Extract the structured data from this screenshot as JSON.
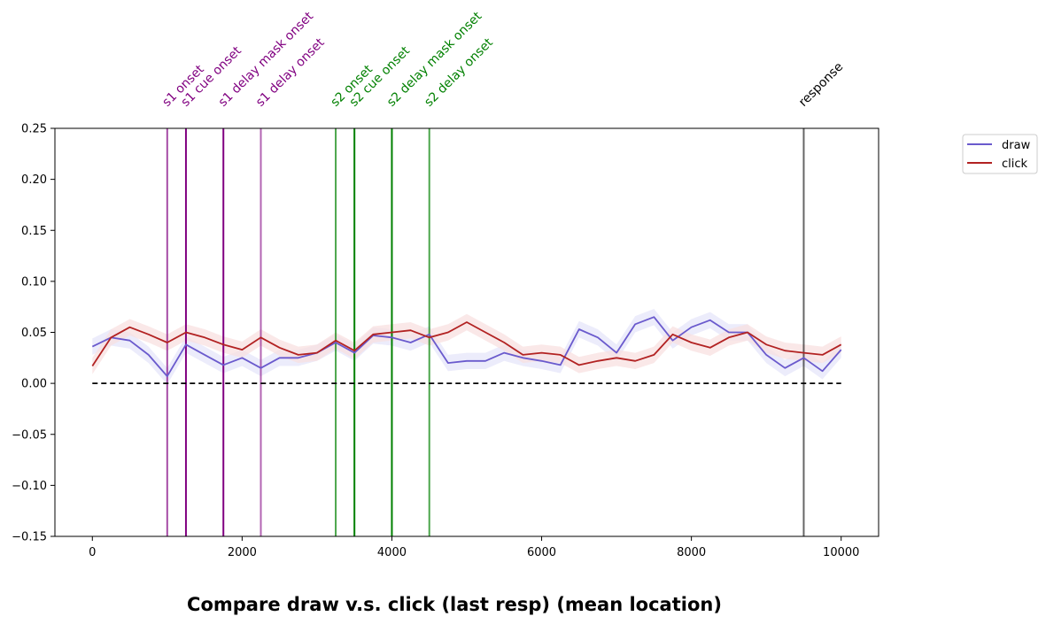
{
  "chart_data": {
    "type": "line",
    "title": "Compare draw v.s. click (last resp) (mean location)",
    "xlabel": "",
    "ylabel": "",
    "xlim": [
      -500,
      10500
    ],
    "ylim": [
      -0.15,
      0.25
    ],
    "xticks": [
      0,
      2000,
      4000,
      6000,
      8000,
      10000
    ],
    "xtick_labels": [
      "0",
      "2000",
      "4000",
      "6000",
      "8000",
      "10000"
    ],
    "yticks": [
      -0.15,
      -0.1,
      -0.05,
      0.0,
      0.05,
      0.1,
      0.15,
      0.2,
      0.25
    ],
    "ytick_labels": [
      "−0.15",
      "−0.10",
      "−0.05",
      "0.00",
      "0.05",
      "0.10",
      "0.15",
      "0.20",
      "0.25"
    ],
    "grid": false,
    "legend_position": "outside-top-right",
    "reference_line": {
      "y": 0,
      "x_range": [
        0,
        10000
      ],
      "style": "dashed",
      "color": "#000000"
    },
    "events": [
      {
        "label": "s1 onset",
        "x": 1000,
        "color": "#800080",
        "opacity": 0.7
      },
      {
        "label": "s1 cue onset",
        "x": 1250,
        "color": "#800080",
        "opacity": 1.0
      },
      {
        "label": "s1 delay mask onset",
        "x": 1750,
        "color": "#800080",
        "opacity": 1.0
      },
      {
        "label": "s1 delay onset",
        "x": 2250,
        "color": "#800080",
        "opacity": 0.6
      },
      {
        "label": "s2 onset",
        "x": 3250,
        "color": "#008000",
        "opacity": 0.7
      },
      {
        "label": "s2 cue onset",
        "x": 3500,
        "color": "#008000",
        "opacity": 1.0
      },
      {
        "label": "s2 delay mask onset",
        "x": 4000,
        "color": "#008000",
        "opacity": 1.0
      },
      {
        "label": "s2 delay onset",
        "x": 4500,
        "color": "#008000",
        "opacity": 0.7
      },
      {
        "label": "response",
        "x": 9500,
        "color": "#000000",
        "opacity": 0.6
      }
    ],
    "series": [
      {
        "name": "draw",
        "color": "#6a5acd",
        "band_color": "#e6e6fa",
        "x": [
          0,
          250,
          500,
          750,
          1000,
          1250,
          1500,
          1750,
          2000,
          2250,
          2500,
          2750,
          3000,
          3250,
          3500,
          3750,
          4000,
          4250,
          4500,
          4750,
          5000,
          5250,
          5500,
          5750,
          6000,
          6250,
          6500,
          6750,
          7000,
          7250,
          7500,
          7750,
          8000,
          8250,
          8500,
          8750,
          9000,
          9250,
          9500,
          9750,
          10000
        ],
        "values": [
          0.036,
          0.045,
          0.042,
          0.028,
          0.007,
          0.038,
          0.028,
          0.018,
          0.025,
          0.015,
          0.025,
          0.025,
          0.03,
          0.04,
          0.03,
          0.047,
          0.045,
          0.04,
          0.048,
          0.02,
          0.022,
          0.022,
          0.03,
          0.025,
          0.022,
          0.018,
          0.053,
          0.045,
          0.03,
          0.058,
          0.065,
          0.042,
          0.055,
          0.062,
          0.05,
          0.05,
          0.028,
          0.015,
          0.025,
          0.012,
          0.033
        ],
        "band": 0.008
      },
      {
        "name": "click",
        "color": "#b22222",
        "band_color": "#f8e0e0",
        "x": [
          0,
          250,
          500,
          750,
          1000,
          1250,
          1500,
          1750,
          2000,
          2250,
          2500,
          2750,
          3000,
          3250,
          3500,
          3750,
          4000,
          4250,
          4500,
          4750,
          5000,
          5250,
          5500,
          5750,
          6000,
          6250,
          6500,
          6750,
          7000,
          7250,
          7500,
          7750,
          8000,
          8250,
          8500,
          8750,
          9000,
          9250,
          9500,
          9750,
          10000
        ],
        "values": [
          0.017,
          0.045,
          0.055,
          0.048,
          0.04,
          0.05,
          0.045,
          0.038,
          0.033,
          0.045,
          0.035,
          0.028,
          0.03,
          0.042,
          0.032,
          0.048,
          0.05,
          0.052,
          0.045,
          0.05,
          0.06,
          0.05,
          0.04,
          0.028,
          0.03,
          0.028,
          0.018,
          0.022,
          0.025,
          0.022,
          0.028,
          0.048,
          0.04,
          0.035,
          0.045,
          0.05,
          0.038,
          0.032,
          0.03,
          0.028,
          0.038
        ],
        "band": 0.008
      }
    ]
  }
}
